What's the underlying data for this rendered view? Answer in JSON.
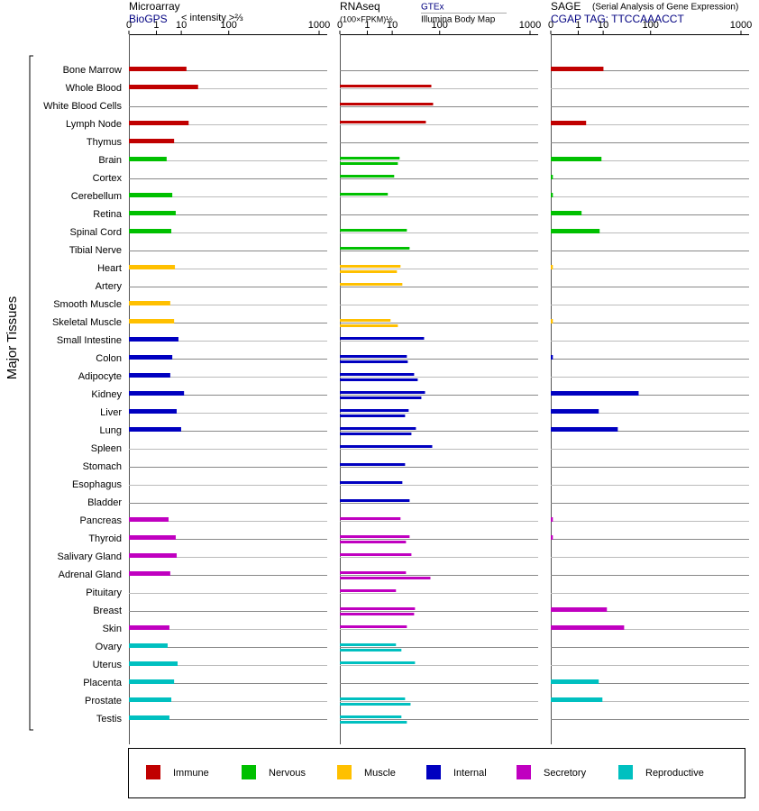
{
  "chart_data": {
    "type": "bar",
    "orientation": "horizontal",
    "y_label": "Major Tissues",
    "groups": [
      {
        "name": "Immune",
        "color": "#c00000",
        "tissues": [
          "Bone Marrow",
          "Whole Blood",
          "White Blood Cells",
          "Lymph Node",
          "Thymus"
        ]
      },
      {
        "name": "Nervous",
        "color": "#00c000",
        "tissues": [
          "Brain",
          "Cortex",
          "Cerebellum",
          "Retina",
          "Spinal Cord",
          "Tibial Nerve"
        ]
      },
      {
        "name": "Muscle",
        "color": "#ffc000",
        "tissues": [
          "Heart",
          "Artery",
          "Smooth Muscle",
          "Skeletal Muscle"
        ]
      },
      {
        "name": "Internal",
        "color": "#0000c0",
        "tissues": [
          "Small Intestine",
          "Colon",
          "Adipocyte",
          "Kidney",
          "Liver",
          "Lung",
          "Spleen",
          "Stomach",
          "Esophagus",
          "Bladder"
        ]
      },
      {
        "name": "Secretory",
        "color": "#c000c0",
        "tissues": [
          "Pancreas",
          "Thyroid",
          "Salivary Gland",
          "Adrenal Gland",
          "Pituitary",
          "Breast",
          "Skin"
        ]
      },
      {
        "name": "Reproductive",
        "color": "#00c0c0",
        "tissues": [
          "Ovary",
          "Uterus",
          "Placenta",
          "Prostate",
          "Testis"
        ]
      }
    ],
    "panels": [
      {
        "title": "Microarray",
        "source": "BioGPS",
        "unit": "< intensity >⅔",
        "xlim": [
          0,
          1000
        ],
        "xticks": [
          0,
          1,
          10,
          100,
          1000
        ],
        "series": [
          {
            "values": [
              14,
              27,
              null,
              16,
              5.9,
              3.1,
              null,
              5.1,
              6.7,
              4.7,
              null,
              6.3,
              null,
              4.3,
              5.9,
              8.2,
              5.1,
              4.3,
              12,
              7.2,
              9.9,
              null,
              null,
              null,
              null,
              3.7,
              6.7,
              7.2,
              4.3,
              null,
              null,
              4,
              3.4,
              7.7,
              5.9,
              4.7,
              4
            ]
          }
        ]
      },
      {
        "title": "RNAseq",
        "unit": "(100×FPKM)½",
        "xlim": [
          0,
          1000
        ],
        "xticks": [
          0,
          1,
          10,
          100,
          1000
        ],
        "series": [
          {
            "name": "GTEx",
            "values": [
              null,
              73.3,
              78.5,
              58.8,
              null,
              16,
              11.4,
              7.3,
              null,
              24.1,
              27.8,
              16.9,
              18.8,
              null,
              8.9,
              54.6,
              24.1,
              34.8,
              56.8,
              26.5,
              37.9,
              75.9,
              21.9,
              18.8,
              27.8,
              16.9,
              27.8,
              30.5,
              23,
              12.8,
              36.3,
              24.1,
              12.8,
              36.3,
              null,
              21.9,
              17.8
            ]
          },
          {
            "name": "Illumina Body Map",
            "values": [
              null,
              null,
              null,
              null,
              null,
              14.4,
              null,
              null,
              null,
              null,
              null,
              13.6,
              null,
              null,
              14.4,
              null,
              25.3,
              41.2,
              48.5,
              21.9,
              30.5,
              null,
              null,
              null,
              null,
              null,
              23,
              null,
              70.7,
              null,
              34.8,
              null,
              17.8,
              null,
              null,
              29.2,
              24.1
            ]
          }
        ]
      },
      {
        "title": "SAGE",
        "subtitle": "(Serial Analysis of Gene Expression)",
        "source": "CGAP TAG: TTCCAAACCT",
        "xlim": [
          0,
          1000
        ],
        "xticks": [
          0,
          1,
          10,
          100,
          1000
        ],
        "series": [
          {
            "values": [
              10.2,
              null,
              null,
              2.45,
              null,
              8.9,
              0.0001,
              0.0001,
              1.5,
              7.8,
              null,
              0.0001,
              null,
              null,
              0.0001,
              null,
              0.0001,
              null,
              63.4,
              7.3,
              24.1,
              null,
              null,
              null,
              null,
              0.0001,
              0.0001,
              null,
              null,
              null,
              12.8,
              33.3,
              null,
              null,
              7.3,
              9.5,
              null
            ]
          }
        ]
      }
    ]
  }
}
